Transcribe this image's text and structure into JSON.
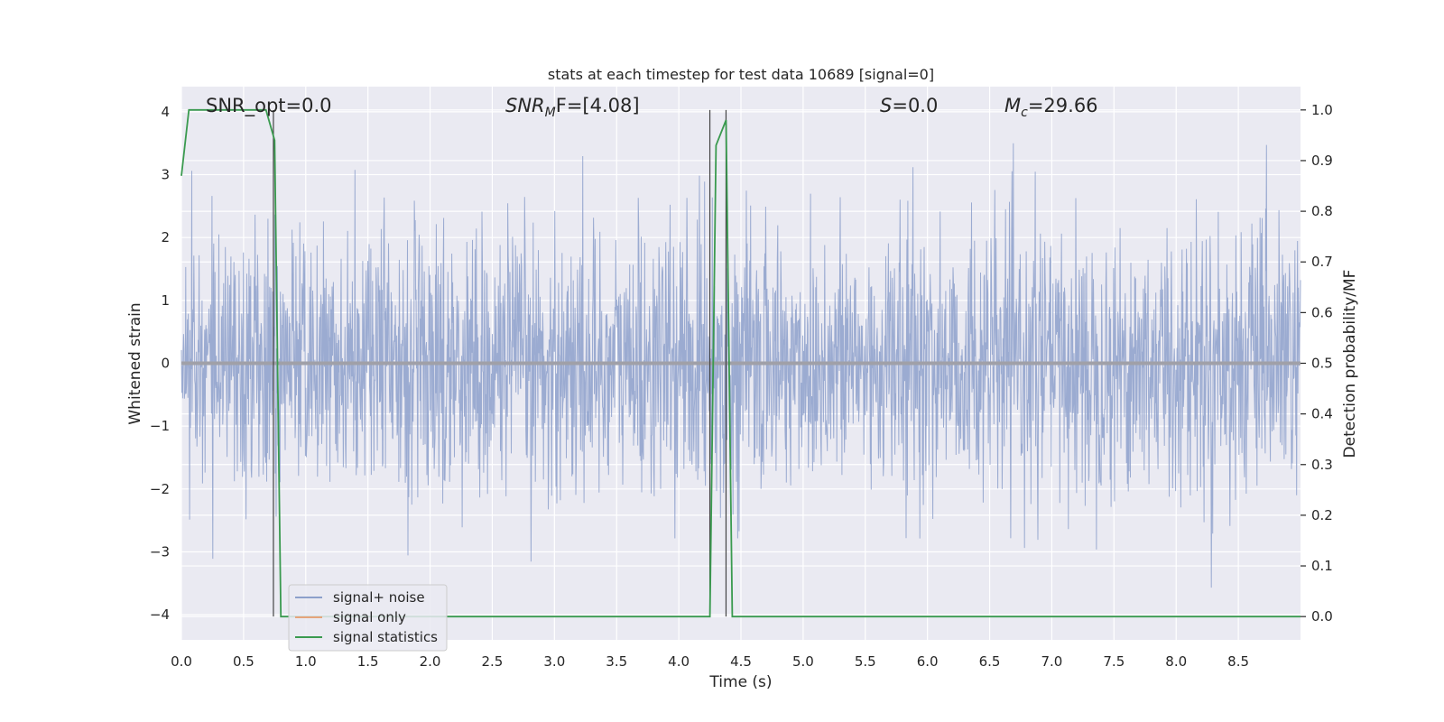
{
  "chart_data": {
    "type": "line",
    "title": "stats at each timestep for test data 10689 [signal=0]",
    "xlabel": "Time (s)",
    "ylabel_left": "Whitened strain",
    "ylabel_right": "Detection probability/MF",
    "xlim": [
      0.0,
      9.0
    ],
    "ylim_left": [
      -4.4,
      4.4
    ],
    "ylim_right": [
      -0.046,
      1.046
    ],
    "x_ticks": [
      "0.0",
      "0.5",
      "1.0",
      "1.5",
      "2.0",
      "2.5",
      "3.0",
      "3.5",
      "4.0",
      "4.5",
      "5.0",
      "5.5",
      "6.0",
      "6.5",
      "7.0",
      "7.5",
      "8.0",
      "8.5"
    ],
    "y_ticks_left": [
      "4",
      "3",
      "2",
      "1",
      "0",
      "−1",
      "−2",
      "−3",
      "−4"
    ],
    "y_ticks_right": [
      "1.0",
      "0.9",
      "0.8",
      "0.7",
      "0.6",
      "0.5",
      "0.4",
      "0.3",
      "0.2",
      "0.1",
      "0.0"
    ],
    "grid": true,
    "legend_position": "lower-left",
    "annotations": {
      "snr_opt": "SNR_opt=0.0",
      "snr_mf_math": "SNR",
      "snr_mf_sub": "M",
      "snr_mf_tail": "F=[4.08]",
      "s_math": "S",
      "s_tail": "=0.0",
      "mc_math": "M",
      "mc_sub": "c",
      "mc_tail": "=29.66"
    },
    "series": [
      {
        "name": "signal+ noise",
        "color": "#8da0cb",
        "description_values": "white noise strain, roughly within -3.7 to 3.5, sampled across 0-9 s",
        "approx_range": [
          -3.7,
          3.5
        ]
      },
      {
        "name": "signal only",
        "color": "#e5a47b",
        "values_x": [
          0.0,
          9.0
        ],
        "values_y": [
          0.0,
          0.0
        ]
      },
      {
        "name": "signal statistics",
        "color": "#3a9a4f",
        "axis": "right",
        "values_x": [
          0.0,
          0.06,
          0.1,
          0.2,
          0.68,
          0.75,
          0.8,
          4.25,
          4.3,
          4.38,
          4.43,
          9.0
        ],
        "values_y": [
          0.87,
          1.0,
          1.0,
          1.0,
          1.0,
          0.94,
          0.0,
          0.0,
          0.93,
          0.98,
          0.0,
          0.0
        ]
      }
    ],
    "vertical_markers_x": [
      0.74,
      4.25,
      4.38
    ]
  }
}
